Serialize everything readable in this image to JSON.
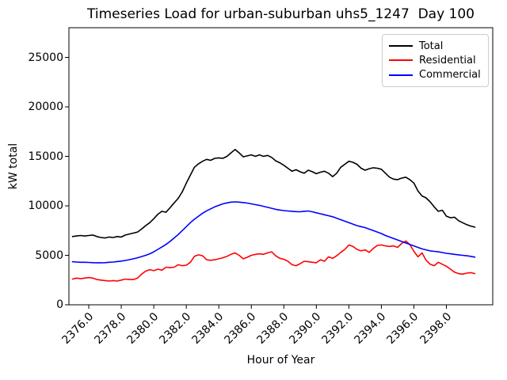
{
  "chart_data": {
    "type": "line",
    "title": "Timeseries Load for urban-suburban uhs5_1247  Day 100",
    "xlabel": "Hour of Year",
    "ylabel": "kW total",
    "xlim": [
      2374.78,
      2400.85
    ],
    "ylim": [
      0,
      28000
    ],
    "grid": false,
    "legend_position": "upper right",
    "xticks": {
      "values": [
        2376,
        2378,
        2380,
        2382,
        2384,
        2386,
        2388,
        2390,
        2392,
        2394,
        2396,
        2398
      ],
      "labels": [
        "2376.0",
        "2378.0",
        "2380.0",
        "2382.0",
        "2384.0",
        "2386.0",
        "2388.0",
        "2390.0",
        "2392.0",
        "2394.0",
        "2396.0",
        "2398.0"
      ]
    },
    "yticks": {
      "values": [
        0,
        5000,
        10000,
        15000,
        20000,
        25000
      ],
      "labels": [
        "0",
        "5000",
        "10000",
        "15000",
        "20000",
        "25000"
      ]
    },
    "x_start": 2375.0,
    "x_step": 0.25,
    "series": [
      {
        "name": "Total",
        "color": "#000000",
        "values": [
          6900,
          6950,
          7000,
          6950,
          7000,
          7050,
          6900,
          6800,
          6750,
          6850,
          6800,
          6900,
          6850,
          7050,
          7150,
          7250,
          7350,
          7650,
          8000,
          8300,
          8700,
          9150,
          9450,
          9350,
          9800,
          10300,
          10750,
          11400,
          12300,
          13100,
          13900,
          14250,
          14500,
          14700,
          14600,
          14800,
          14850,
          14800,
          15000,
          15350,
          15700,
          15350,
          14950,
          15050,
          15150,
          15000,
          15150,
          15000,
          15100,
          14900,
          14550,
          14350,
          14100,
          13800,
          13500,
          13650,
          13450,
          13300,
          13600,
          13450,
          13250,
          13400,
          13500,
          13300,
          12950,
          13300,
          13900,
          14200,
          14500,
          14400,
          14200,
          13800,
          13600,
          13750,
          13850,
          13800,
          13700,
          13300,
          12900,
          12700,
          12650,
          12800,
          12900,
          12650,
          12300,
          11500,
          11000,
          10800,
          10400,
          9900,
          9450,
          9550,
          8950,
          8800,
          8850,
          8500,
          8300,
          8100,
          7950,
          7850
        ]
      },
      {
        "name": "Residential",
        "color": "#ff0000",
        "values": [
          2600,
          2700,
          2650,
          2700,
          2750,
          2700,
          2550,
          2500,
          2450,
          2400,
          2450,
          2400,
          2500,
          2600,
          2550,
          2550,
          2700,
          3100,
          3400,
          3550,
          3450,
          3600,
          3500,
          3800,
          3750,
          3800,
          4050,
          3950,
          4000,
          4300,
          4900,
          5050,
          4950,
          4550,
          4500,
          4550,
          4650,
          4750,
          4900,
          5100,
          5250,
          5000,
          4650,
          4800,
          5000,
          5100,
          5150,
          5100,
          5250,
          5350,
          4950,
          4700,
          4600,
          4400,
          4050,
          3950,
          4150,
          4400,
          4350,
          4300,
          4250,
          4550,
          4400,
          4850,
          4700,
          4950,
          5300,
          5600,
          6050,
          5900,
          5600,
          5450,
          5550,
          5300,
          5700,
          6000,
          6050,
          5950,
          5900,
          5950,
          5800,
          6200,
          6450,
          6100,
          5400,
          4850,
          5250,
          4500,
          4100,
          3950,
          4300,
          4100,
          3900,
          3600,
          3300,
          3150,
          3100,
          3200,
          3250,
          3150
        ]
      },
      {
        "name": "Commercial",
        "color": "#0000ff",
        "values": [
          4350,
          4320,
          4300,
          4300,
          4280,
          4260,
          4250,
          4250,
          4260,
          4300,
          4320,
          4370,
          4420,
          4480,
          4560,
          4650,
          4750,
          4870,
          5000,
          5150,
          5350,
          5600,
          5850,
          6100,
          6400,
          6750,
          7100,
          7500,
          7900,
          8300,
          8650,
          8950,
          9250,
          9500,
          9700,
          9900,
          10050,
          10200,
          10300,
          10380,
          10400,
          10380,
          10330,
          10280,
          10200,
          10120,
          10050,
          9950,
          9850,
          9750,
          9650,
          9580,
          9520,
          9480,
          9450,
          9420,
          9400,
          9450,
          9480,
          9400,
          9300,
          9200,
          9100,
          9000,
          8900,
          8750,
          8600,
          8450,
          8300,
          8150,
          8000,
          7900,
          7800,
          7650,
          7500,
          7350,
          7200,
          7000,
          6850,
          6700,
          6550,
          6400,
          6250,
          6100,
          5950,
          5800,
          5650,
          5550,
          5450,
          5400,
          5350,
          5280,
          5200,
          5150,
          5100,
          5050,
          5000,
          4950,
          4900,
          4820
        ]
      }
    ]
  }
}
